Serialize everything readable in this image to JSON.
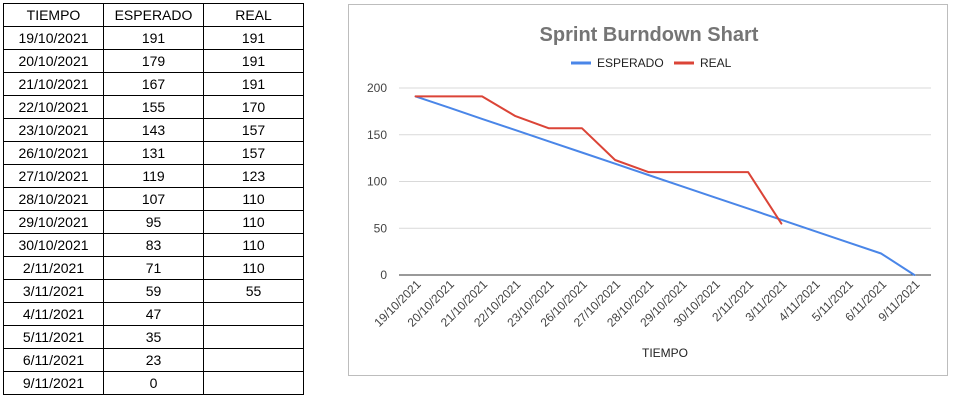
{
  "table": {
    "headers": [
      "TIEMPO",
      "ESPERADO",
      "REAL"
    ],
    "rows": [
      [
        "19/10/2021",
        "191",
        "191"
      ],
      [
        "20/10/2021",
        "179",
        "191"
      ],
      [
        "21/10/2021",
        "167",
        "191"
      ],
      [
        "22/10/2021",
        "155",
        "170"
      ],
      [
        "23/10/2021",
        "143",
        "157"
      ],
      [
        "26/10/2021",
        "131",
        "157"
      ],
      [
        "27/10/2021",
        "119",
        "123"
      ],
      [
        "28/10/2021",
        "107",
        "110"
      ],
      [
        "29/10/2021",
        "95",
        "110"
      ],
      [
        "30/10/2021",
        "83",
        "110"
      ],
      [
        "2/11/2021",
        "71",
        "110"
      ],
      [
        "3/11/2021",
        "59",
        "55"
      ],
      [
        "4/11/2021",
        "47",
        ""
      ],
      [
        "5/11/2021",
        "35",
        ""
      ],
      [
        "6/11/2021",
        "23",
        ""
      ],
      [
        "9/11/2021",
        "0",
        ""
      ]
    ]
  },
  "chart_data": {
    "type": "line",
    "title": "Sprint Burndown Shart",
    "xlabel": "TIEMPO",
    "ylabel": "",
    "ylim": [
      0,
      200
    ],
    "yticks": [
      0,
      50,
      100,
      150,
      200
    ],
    "grid": true,
    "legend_position": "top",
    "categories": [
      "19/10/2021",
      "20/10/2021",
      "21/10/2021",
      "22/10/2021",
      "23/10/2021",
      "26/10/2021",
      "27/10/2021",
      "28/10/2021",
      "29/10/2021",
      "30/10/2021",
      "2/11/2021",
      "3/11/2021",
      "4/11/2021",
      "5/11/2021",
      "6/11/2021",
      "9/11/2021"
    ],
    "series": [
      {
        "name": "ESPERADO",
        "color": "#4a86e8",
        "values": [
          191,
          179,
          167,
          155,
          143,
          131,
          119,
          107,
          95,
          83,
          71,
          59,
          47,
          35,
          23,
          0
        ]
      },
      {
        "name": "REAL",
        "color": "#db4437",
        "values": [
          191,
          191,
          191,
          170,
          157,
          157,
          123,
          110,
          110,
          110,
          110,
          55,
          null,
          null,
          null,
          null
        ]
      }
    ]
  }
}
